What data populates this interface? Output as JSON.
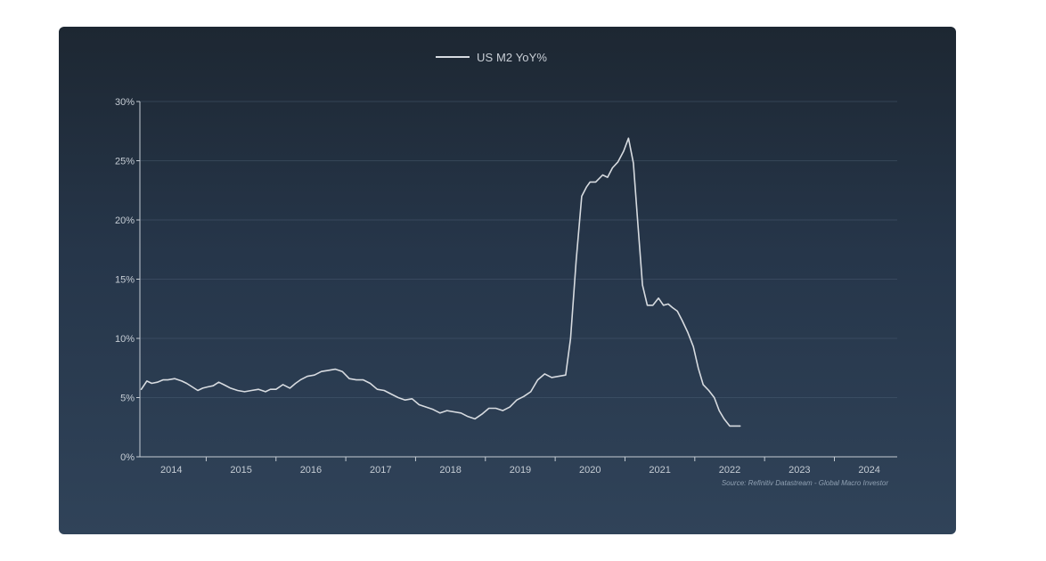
{
  "chart_data": {
    "type": "line",
    "title": "",
    "legend": [
      "US M2 YoY%"
    ],
    "legend_position": "top-center",
    "xlabel": "",
    "ylabel": "",
    "xlim": [
      2013.55,
      2024.4
    ],
    "ylim": [
      0,
      30
    ],
    "y_ticks": [
      {
        "value": 0,
        "label": "0%"
      },
      {
        "value": 5,
        "label": "5%"
      },
      {
        "value": 10,
        "label": "10%"
      },
      {
        "value": 15,
        "label": "15%"
      },
      {
        "value": 20,
        "label": "20%"
      },
      {
        "value": 25,
        "label": "25%"
      },
      {
        "value": 30,
        "label": "30%"
      }
    ],
    "x_tick_labels": [
      {
        "value": 2014,
        "label": "2014"
      },
      {
        "value": 2015,
        "label": "2015"
      },
      {
        "value": 2016,
        "label": "2016"
      },
      {
        "value": 2017,
        "label": "2017"
      },
      {
        "value": 2018,
        "label": "2018"
      },
      {
        "value": 2019,
        "label": "2019"
      },
      {
        "value": 2020,
        "label": "2020"
      },
      {
        "value": 2021,
        "label": "2021"
      },
      {
        "value": 2022,
        "label": "2022"
      },
      {
        "value": 2023,
        "label": "2023"
      },
      {
        "value": 2024,
        "label": "2024"
      }
    ],
    "x_tick_marks": [
      2014.5,
      2015.5,
      2016.5,
      2017.5,
      2018.5,
      2019.5,
      2020.5,
      2021.5,
      2022.5,
      2023.5
    ],
    "grid": true,
    "series": [
      {
        "name": "US M2 YoY%",
        "color": "#d7dbe0",
        "x": [
          2013.57,
          2013.65,
          2013.72,
          2013.8,
          2013.88,
          2013.95,
          2014.05,
          2014.15,
          2014.22,
          2014.3,
          2014.38,
          2014.45,
          2014.52,
          2014.6,
          2014.68,
          2014.75,
          2014.85,
          2014.95,
          2015.05,
          2015.15,
          2015.25,
          2015.35,
          2015.42,
          2015.5,
          2015.6,
          2015.7,
          2015.78,
          2015.85,
          2015.95,
          2016.05,
          2016.15,
          2016.25,
          2016.35,
          2016.45,
          2016.55,
          2016.65,
          2016.75,
          2016.85,
          2016.95,
          2017.05,
          2017.15,
          2017.25,
          2017.35,
          2017.45,
          2017.55,
          2017.65,
          2017.75,
          2017.85,
          2017.95,
          2018.05,
          2018.15,
          2018.25,
          2018.35,
          2018.45,
          2018.55,
          2018.65,
          2018.75,
          2018.85,
          2018.95,
          2019.05,
          2019.15,
          2019.25,
          2019.35,
          2019.45,
          2019.55,
          2019.65,
          2019.72,
          2019.8,
          2019.88,
          2019.95,
          2020.0,
          2020.08,
          2020.18,
          2020.25,
          2020.32,
          2020.4,
          2020.48,
          2020.55,
          2020.62,
          2020.68,
          2020.75,
          2020.82,
          2020.9,
          2020.98,
          2021.05,
          2021.12,
          2021.18,
          2021.25,
          2021.32,
          2021.4,
          2021.48,
          2021.55,
          2021.62,
          2021.7,
          2021.78,
          2021.85,
          2021.92,
          2022.0,
          2022.08,
          2022.15
        ],
        "y": [
          5.7,
          6.4,
          6.2,
          6.3,
          6.5,
          6.5,
          6.6,
          6.4,
          6.2,
          5.9,
          5.6,
          5.8,
          5.9,
          6.0,
          6.3,
          6.1,
          5.8,
          5.6,
          5.5,
          5.6,
          5.7,
          5.5,
          5.7,
          5.7,
          6.1,
          5.8,
          6.2,
          6.5,
          6.8,
          6.9,
          7.2,
          7.3,
          7.4,
          7.2,
          6.6,
          6.5,
          6.5,
          6.2,
          5.7,
          5.6,
          5.3,
          5.0,
          4.8,
          4.9,
          4.4,
          4.2,
          4.0,
          3.7,
          3.9,
          3.8,
          3.7,
          3.4,
          3.2,
          3.6,
          4.1,
          4.1,
          3.9,
          4.2,
          4.8,
          5.1,
          5.5,
          6.5,
          7.0,
          6.7,
          6.8,
          6.9,
          10.0,
          16.5,
          22.0,
          22.8,
          23.2,
          23.2,
          23.8,
          23.6,
          24.4,
          24.9,
          25.8,
          26.9,
          24.8,
          20.0,
          14.5,
          12.8,
          12.8,
          13.4,
          12.8,
          12.9,
          12.6,
          12.3,
          11.5,
          10.5,
          9.3,
          7.5,
          6.1,
          5.6,
          5.0,
          3.9,
          3.2,
          2.6,
          2.6,
          2.6
        ]
      }
    ],
    "source_note": "Source: Refinitiv Datastream - Global Macro Investor"
  }
}
